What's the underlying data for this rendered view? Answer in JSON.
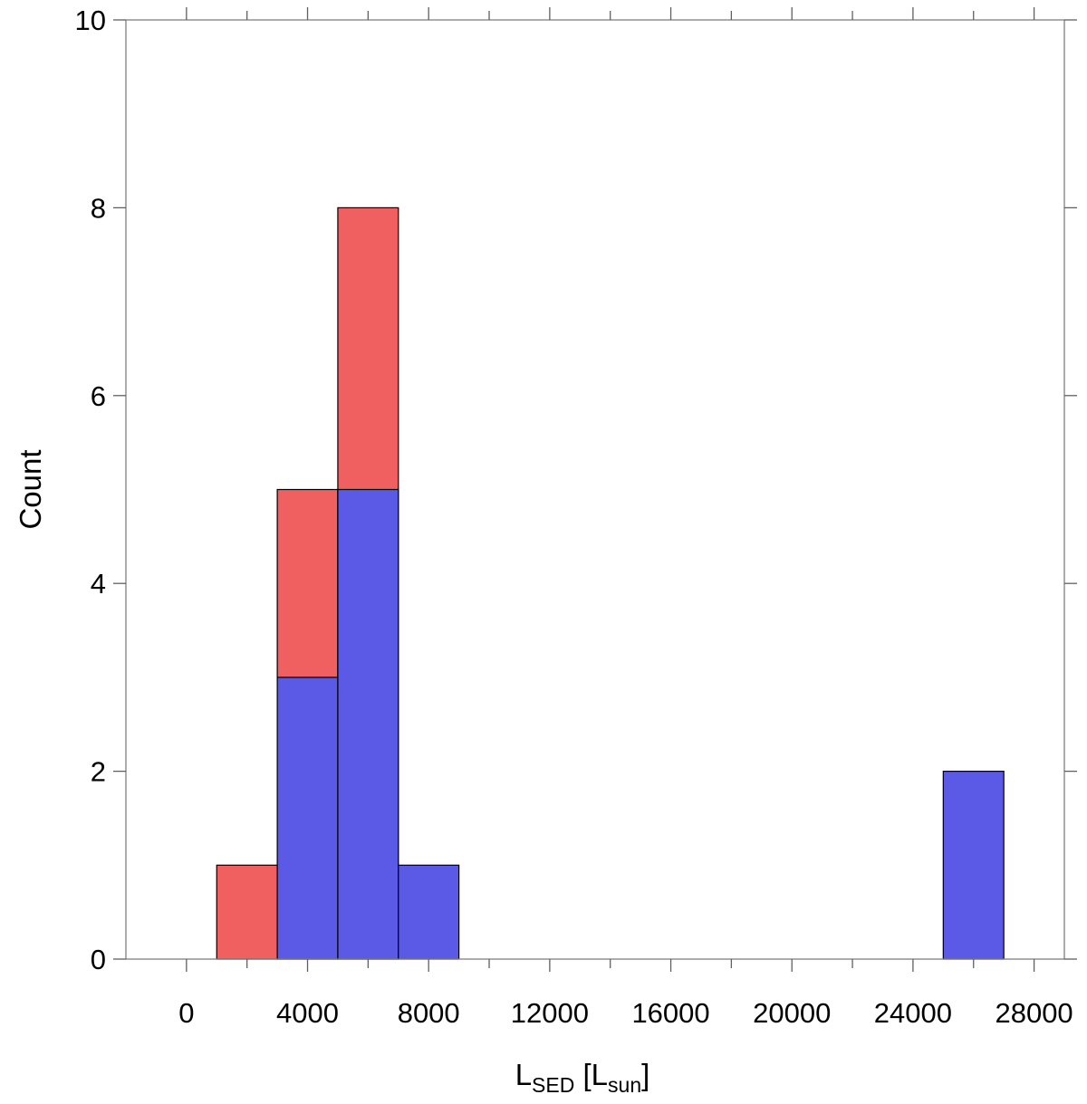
{
  "chart_data": {
    "type": "bar",
    "stacked": false,
    "bin_width": 2000,
    "xlim": [
      -2000,
      29000
    ],
    "ylim": [
      0,
      10
    ],
    "x_ticks": [
      0,
      4000,
      8000,
      12000,
      16000,
      20000,
      24000,
      28000
    ],
    "x_tick_labels": [
      "0",
      "4000",
      "8000",
      "12000",
      "16000",
      "20000",
      "24000",
      "28000"
    ],
    "x_minor_tick_step": 2000,
    "y_ticks": [
      0,
      2,
      4,
      6,
      8,
      10
    ],
    "y_tick_labels": [
      "0",
      "2",
      "4",
      "6",
      "8",
      "10"
    ],
    "ylabel": "Count",
    "xlabel": {
      "main": "L",
      "main_sub": "SED",
      "bracket_open": " [L",
      "unit_sub": "sun",
      "bracket_close": "]"
    },
    "grid": false,
    "legend": "none",
    "series": [
      {
        "color": "#f06060",
        "bins": [
          {
            "x0": 1000,
            "x1": 3000,
            "count": 1
          },
          {
            "x0": 3000,
            "x1": 5000,
            "count": 5
          },
          {
            "x0": 5000,
            "x1": 7000,
            "count": 8
          }
        ]
      },
      {
        "color": "#5a5ae6",
        "bins": [
          {
            "x0": 3000,
            "x1": 5000,
            "count": 3
          },
          {
            "x0": 5000,
            "x1": 7000,
            "count": 5
          },
          {
            "x0": 7000,
            "x1": 9000,
            "count": 1
          },
          {
            "x0": 25000,
            "x1": 27000,
            "count": 2
          }
        ]
      }
    ]
  }
}
